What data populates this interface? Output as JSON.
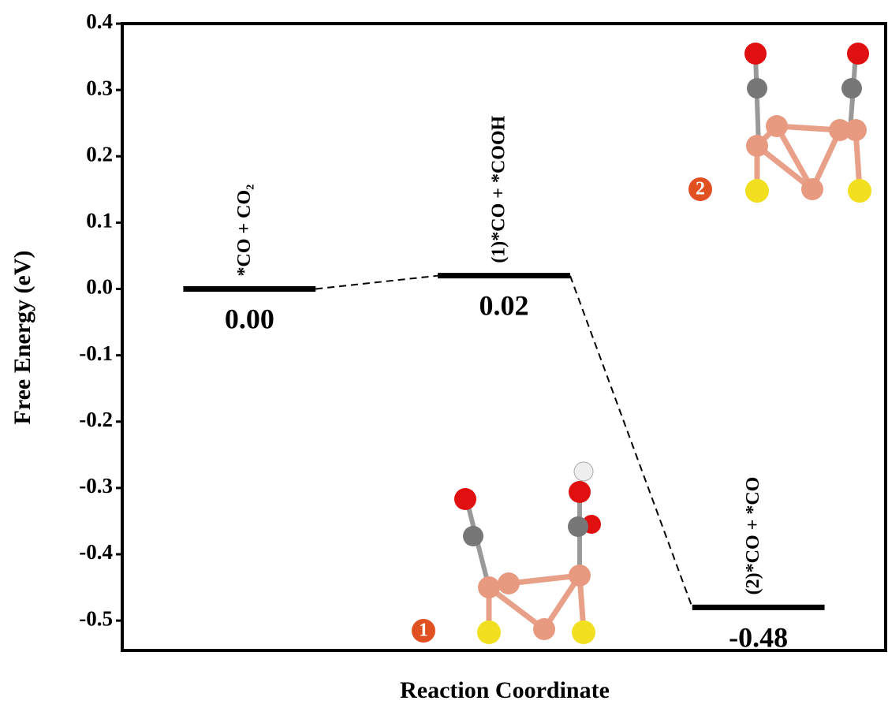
{
  "chart_data": {
    "type": "energy_levels",
    "y_label": "Free Energy (eV)",
    "x_label": "Reaction Coordinate",
    "categories": [
      null,
      null,
      null
    ],
    "values": [
      0.0,
      0.02,
      -0.48
    ],
    "value_labels": [
      "0.00",
      "0.02",
      "-0.48"
    ],
    "state_labels": [
      "*CO + CO₂",
      "(1)*CO + *COOH",
      "(2)*CO + *CO"
    ],
    "badges": [
      "1",
      "2"
    ],
    "color": "#000000",
    "ylim": [
      -0.545,
      0.4
    ],
    "yticks": [
      {
        "value": 0.4,
        "label": "0.4"
      },
      {
        "value": 0.3,
        "label": "0.3"
      },
      {
        "value": 0.2,
        "label": "0.2"
      },
      {
        "value": 0.1,
        "label": "0.1"
      },
      {
        "value": 0.0,
        "label": "0.0"
      },
      {
        "value": -0.1,
        "label": "-0.1"
      },
      {
        "value": -0.2,
        "label": "-0.2"
      },
      {
        "value": -0.3,
        "label": "-0.3"
      },
      {
        "value": -0.4,
        "label": "-0.4"
      },
      {
        "value": -0.5,
        "label": "-0.5"
      }
    ]
  }
}
